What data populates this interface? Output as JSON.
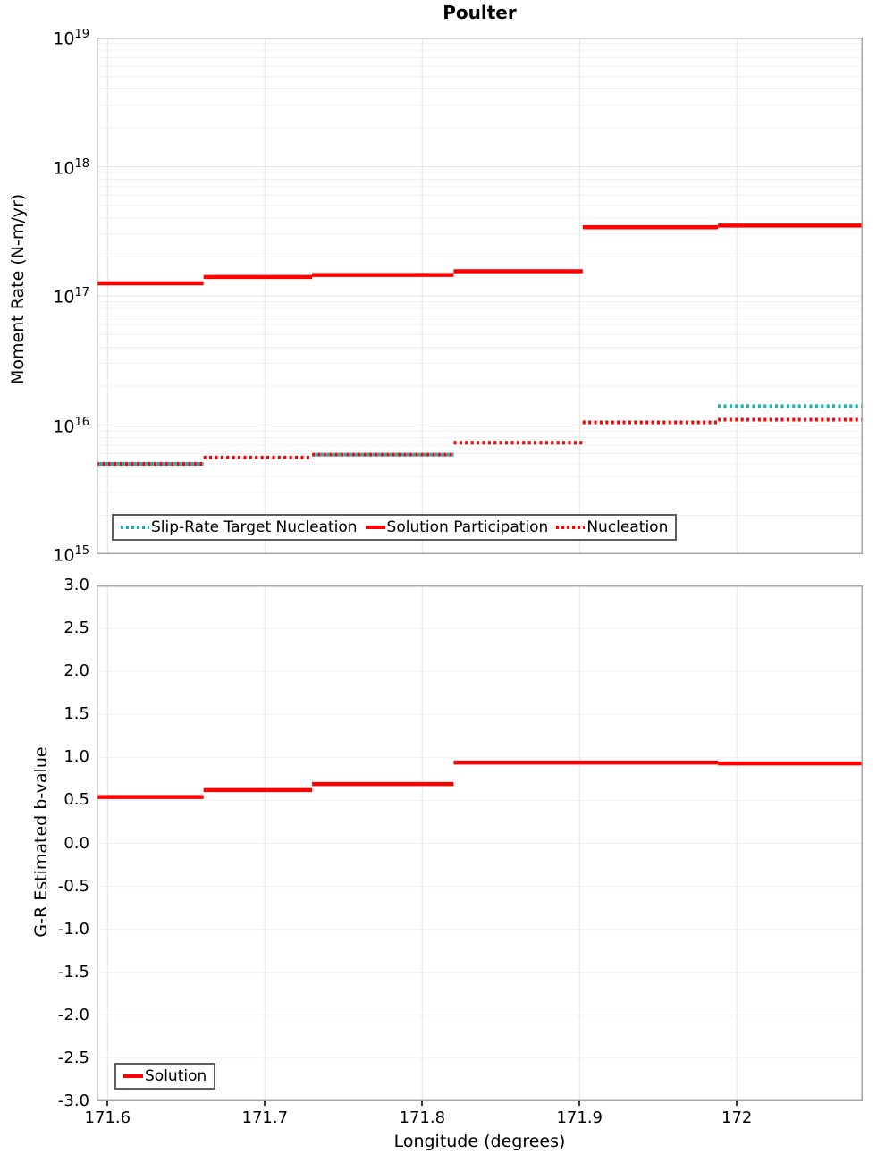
{
  "title": "Poulter",
  "xlabel": "Longitude (degrees)",
  "accent_colors": {
    "red": "#ff0000",
    "teal": "#10b3b3"
  },
  "chart_data": [
    {
      "type": "line",
      "subtype": "step-segments",
      "title": "Poulter",
      "xlabel": "Longitude (degrees)",
      "ylabel": "Moment Rate (N-m/yr)",
      "y_scale": "log",
      "ylim": [
        1000000000000000.0,
        1e+19
      ],
      "xlim": [
        171.593,
        172.08
      ],
      "grid": true,
      "y_tick_exponents": [
        19,
        18,
        17,
        16,
        15
      ],
      "x_ticks": {
        "values": [
          171.6,
          171.7,
          171.8,
          171.9,
          172.0
        ],
        "labels": [
          "171.6",
          "171.7",
          "171.8",
          "171.9",
          "172"
        ]
      },
      "x_edges": [
        171.593,
        171.661,
        171.73,
        171.82,
        171.902,
        171.988,
        172.08
      ],
      "series": [
        {
          "name": "Slip-Rate Target Nucleation",
          "style": "dotted",
          "color": "#10b3b3",
          "values": [
            5000000000000000.0,
            5600000000000000.0,
            5900000000000000.0,
            7300000000000000.0,
            1.05e+16,
            1.4e+16
          ]
        },
        {
          "name": "Solution Participation",
          "style": "solid",
          "color": "#ff0000",
          "values": [
            1.25e+17,
            1.4e+17,
            1.45e+17,
            1.55e+17,
            3.4e+17,
            3.5e+17
          ]
        },
        {
          "name": "Nucleation",
          "style": "dotted",
          "color": "#ff0000",
          "values": [
            5000000000000000.0,
            5600000000000000.0,
            5900000000000000.0,
            7300000000000000.0,
            1.05e+16,
            1.1e+16
          ]
        }
      ],
      "legend_position": "inside-bottom"
    },
    {
      "type": "line",
      "subtype": "step-segments",
      "title": "",
      "xlabel": "Longitude (degrees)",
      "ylabel": "G-R Estimated b-value",
      "y_scale": "linear",
      "ylim": [
        -3.0,
        3.0
      ],
      "xlim": [
        171.593,
        172.08
      ],
      "grid": true,
      "y_ticks": {
        "values": [
          3.0,
          2.5,
          2.0,
          1.5,
          1.0,
          0.5,
          0.0,
          -0.5,
          -1.0,
          -1.5,
          -2.0,
          -2.5,
          -3.0
        ],
        "labels": [
          "3.0",
          "2.5",
          "2.0",
          "1.5",
          "1.0",
          "0.5",
          "0.0",
          "-0.5",
          "-1.0",
          "-1.5",
          "-2.0",
          "-2.5",
          "-3.0"
        ]
      },
      "x_ticks": {
        "values": [
          171.6,
          171.7,
          171.8,
          171.9,
          172.0
        ],
        "labels": [
          "171.6",
          "171.7",
          "171.8",
          "171.9",
          "172"
        ]
      },
      "x_edges": [
        171.593,
        171.661,
        171.73,
        171.82,
        171.988,
        172.08
      ],
      "series": [
        {
          "name": "Solution",
          "style": "solid",
          "color": "#ff0000",
          "values": [
            0.54,
            0.62,
            0.69,
            0.94,
            0.93
          ]
        }
      ],
      "legend_position": "inside-bottom-left"
    }
  ]
}
